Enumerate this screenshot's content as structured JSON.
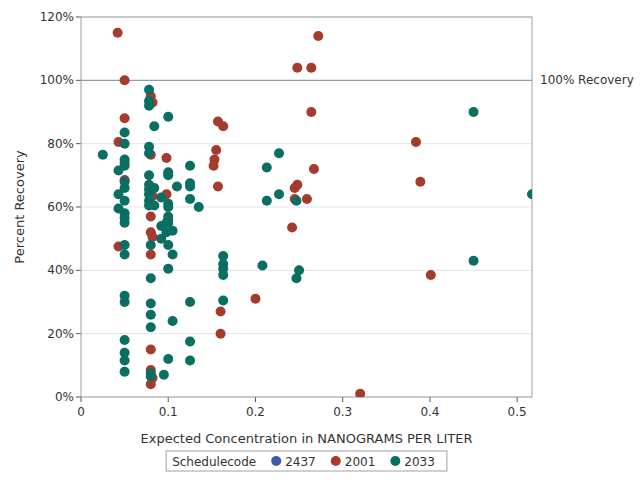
{
  "chart_data": {
    "type": "scatter",
    "x_label": "Expected Concentration in NANOGRAMS PER LITER",
    "y_label": "Percent Recovery",
    "xlim": [
      0,
      0.517
    ],
    "ylim": [
      0,
      120
    ],
    "xticks": [
      0,
      0.1,
      0.2,
      0.3,
      0.4,
      0.5
    ],
    "yticks": [
      {
        "value": 0,
        "label": "0%"
      },
      {
        "value": 20,
        "label": "20%"
      },
      {
        "value": 40,
        "label": "40%"
      },
      {
        "value": 60,
        "label": "60%"
      },
      {
        "value": 80,
        "label": "80%"
      },
      {
        "value": 100,
        "label": "100%"
      },
      {
        "value": 120,
        "label": "120%"
      }
    ],
    "grid": true,
    "legend": "bottom",
    "legend_title": "Schedulecode",
    "reference_line": {
      "value": 100,
      "label": "100% Recovery"
    },
    "marker": "circle",
    "series": [
      {
        "name": "2437",
        "color": "#3b5ba5",
        "x": [],
        "values": []
      },
      {
        "name": "2001",
        "color": "#a53b2c",
        "x": [
          0.042,
          0.05,
          0.05,
          0.043,
          0.05,
          0.05,
          0.043,
          0.08,
          0.082,
          0.08,
          0.098,
          0.082,
          0.098,
          0.08,
          0.08,
          0.082,
          0.08,
          0.082,
          0.08,
          0.08,
          0.08,
          0.155,
          0.153,
          0.152,
          0.157,
          0.163,
          0.157,
          0.16,
          0.16,
          0.2,
          0.248,
          0.264,
          0.272,
          0.264,
          0.267,
          0.248,
          0.245,
          0.245,
          0.242,
          0.259,
          0.32,
          0.384,
          0.389,
          0.401
        ],
        "values": [
          115,
          100,
          88,
          80.5,
          74,
          68.5,
          47.5,
          95,
          93,
          76.5,
          75.5,
          63.5,
          64,
          57,
          52,
          50.5,
          45,
          6,
          8.5,
          15,
          4,
          78,
          75,
          73,
          87,
          85.5,
          66.5,
          27,
          20,
          31,
          104,
          104,
          114,
          90,
          72,
          67,
          66,
          62.5,
          53.5,
          62.5,
          1,
          80.5,
          68,
          38.5
        ]
      },
      {
        "name": "2033",
        "color": "#0b6e62",
        "x": [
          0.025,
          0.043,
          0.043,
          0.043,
          0.05,
          0.05,
          0.05,
          0.05,
          0.05,
          0.05,
          0.05,
          0.05,
          0.05,
          0.05,
          0.05,
          0.05,
          0.05,
          0.05,
          0.05,
          0.05,
          0.05,
          0.05,
          0.078,
          0.078,
          0.078,
          0.078,
          0.078,
          0.078,
          0.078,
          0.078,
          0.078,
          0.078,
          0.078,
          0.08,
          0.08,
          0.08,
          0.08,
          0.08,
          0.08,
          0.08,
          0.084,
          0.084,
          0.084,
          0.092,
          0.092,
          0.092,
          0.095,
          0.098,
          0.098,
          0.1,
          0.1,
          0.1,
          0.1,
          0.1,
          0.1,
          0.1,
          0.1,
          0.1,
          0.1,
          0.1,
          0.105,
          0.105,
          0.105,
          0.11,
          0.125,
          0.125,
          0.125,
          0.125,
          0.125,
          0.125,
          0.125,
          0.135,
          0.163,
          0.163,
          0.163,
          0.163,
          0.163,
          0.208,
          0.213,
          0.213,
          0.227,
          0.227,
          0.247,
          0.247,
          0.25,
          0.45,
          0.45,
          0.517
        ],
        "values": [
          76.5,
          71.5,
          64,
          59.5,
          83.5,
          80,
          75,
          73,
          68,
          66,
          62,
          58,
          56.5,
          55,
          48,
          45,
          32,
          30,
          18,
          14,
          11.5,
          8,
          97,
          93.5,
          92,
          79,
          77,
          70,
          67,
          65.5,
          64,
          62,
          60.5,
          48,
          37.5,
          29.5,
          26,
          22,
          7.5,
          6.5,
          85.5,
          66,
          60.5,
          63,
          54,
          50,
          7,
          52,
          55,
          88.5,
          71,
          70,
          61,
          60,
          57,
          56,
          55,
          48,
          40.5,
          12,
          52.5,
          45,
          24,
          66.5,
          73,
          67.5,
          66.5,
          62.5,
          30,
          17.5,
          11.5,
          60,
          44.5,
          42,
          40.5,
          38.5,
          30.5,
          41.5,
          72.5,
          62,
          77,
          64,
          62,
          37.5,
          40,
          90,
          43,
          64
        ]
      }
    ]
  }
}
